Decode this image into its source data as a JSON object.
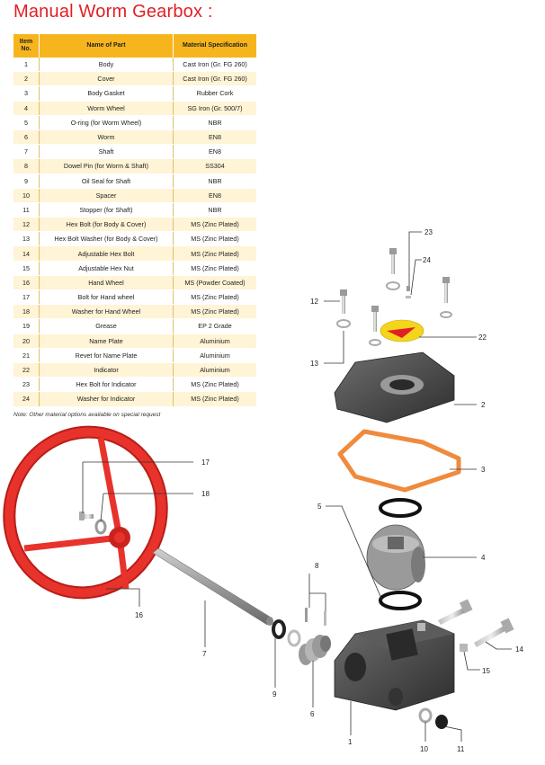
{
  "title": "Manual Worm Gearbox :",
  "table": {
    "headers": {
      "item": "Item No.",
      "name": "Name of Part",
      "material": "Material Specification"
    },
    "rows": [
      {
        "no": "1",
        "name": "Body",
        "material": "Cast Iron (Gr. FG 260)"
      },
      {
        "no": "2",
        "name": "Cover",
        "material": "Cast Iron (Gr. FG 260)"
      },
      {
        "no": "3",
        "name": "Body Gasket",
        "material": "Rubber Cork"
      },
      {
        "no": "4",
        "name": "Worm Wheel",
        "material": "SG Iron (Gr. 500/7)"
      },
      {
        "no": "5",
        "name": "O-ring (for Worm Wheel)",
        "material": "NBR"
      },
      {
        "no": "6",
        "name": "Worm",
        "material": "EN8"
      },
      {
        "no": "7",
        "name": "Shaft",
        "material": "EN8"
      },
      {
        "no": "8",
        "name": "Dowel Pin (for Worm & Shaft)",
        "material": "SS304"
      },
      {
        "no": "9",
        "name": "Oil Seal for Shaft",
        "material": "NBR"
      },
      {
        "no": "10",
        "name": "Spacer",
        "material": "EN8"
      },
      {
        "no": "11",
        "name": "Stopper (for Shaft)",
        "material": "NBR"
      },
      {
        "no": "12",
        "name": "Hex Bolt (for Body & Cover)",
        "material": "MS (Zinc Plated)"
      },
      {
        "no": "13",
        "name": "Hex Bolt Washer (for Body & Cover)",
        "material": "MS (Zinc Plated)"
      },
      {
        "no": "14",
        "name": "Adjustable Hex Bolt",
        "material": "MS (Zinc Plated)"
      },
      {
        "no": "15",
        "name": "Adjustable Hex Nut",
        "material": "MS (Zinc Plated)"
      },
      {
        "no": "16",
        "name": "Hand Wheel",
        "material": "MS (Powder Coated)"
      },
      {
        "no": "17",
        "name": "Bolt for Hand wheel",
        "material": "MS (Zinc Plated)"
      },
      {
        "no": "18",
        "name": "Washer for Hand Wheel",
        "material": "MS (Zinc Plated)"
      },
      {
        "no": "19",
        "name": "Grease",
        "material": "EP 2 Grade"
      },
      {
        "no": "20",
        "name": "Name Plate",
        "material": "Aluminium"
      },
      {
        "no": "21",
        "name": "Revet for Name Plate",
        "material": "Aluminium"
      },
      {
        "no": "22",
        "name": "Indicator",
        "material": "Aluminium"
      },
      {
        "no": "23",
        "name": "Hex Bolt for Indicator",
        "material": "MS (Zinc Plated)"
      },
      {
        "no": "24",
        "name": "Washer for Indicator",
        "material": "MS (Zinc Plated)"
      }
    ]
  },
  "note": "Note: Other material options available on special request",
  "callouts": {
    "c1": "1",
    "c2": "2",
    "c3": "3",
    "c4": "4",
    "c5": "5",
    "c6": "6",
    "c7": "7",
    "c8": "8",
    "c9": "9",
    "c10": "10",
    "c11": "11",
    "c12": "12",
    "c13": "13",
    "c14": "14",
    "c15": "15",
    "c16": "16",
    "c17": "17",
    "c18": "18",
    "c22": "22",
    "c23": "23",
    "c24": "24"
  },
  "colors": {
    "title": "#e31e24",
    "header": "#f6b51c",
    "row_alt": "#fff4d6",
    "hand_wheel": "#e8322c",
    "gasket": "#f08a3c",
    "cast_iron": "#4a4a4a"
  }
}
